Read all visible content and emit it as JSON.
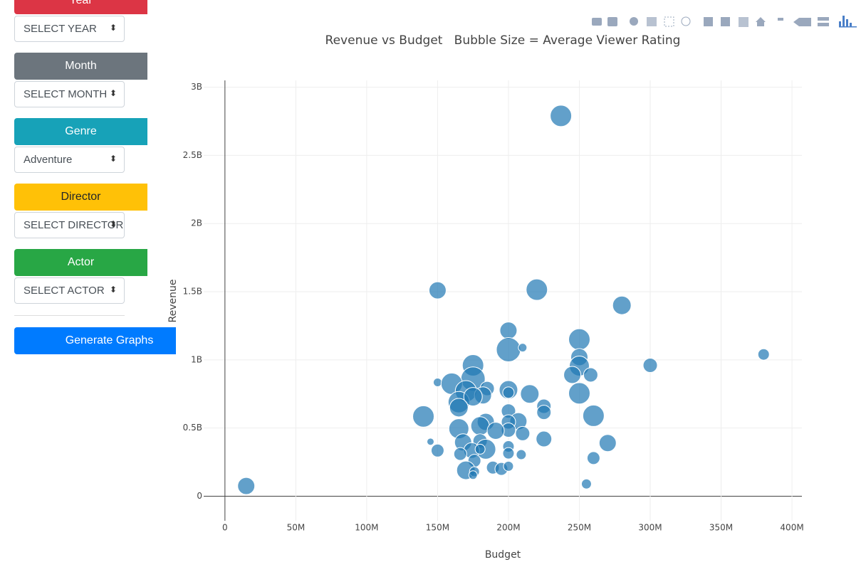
{
  "sidebar": {
    "filters": [
      {
        "label": "Year",
        "select": "SELECT YEAR",
        "color": "#dc3545"
      },
      {
        "label": "Month",
        "select": "SELECT MONTH",
        "color": "#6c757d"
      },
      {
        "label": "Genre",
        "select": "Adventure",
        "color": "#17a2b8"
      },
      {
        "label": "Director",
        "select": "SELECT DIRECTOR",
        "color": "#ffc107"
      },
      {
        "label": "Actor",
        "select": "SELECT ACTOR",
        "color": "#28a745"
      }
    ],
    "button": {
      "label": "Generate Graphs",
      "color": "#007bff"
    }
  },
  "chart_data": {
    "type": "scatter",
    "title": "Revenue vs Budget   Bubble Size = Average Viewer Rating",
    "x_label": "Budget",
    "y_label": "Revenue",
    "color": "rgba(31,119,180,0.7)",
    "grid": true,
    "xlim": [
      -15000000,
      407000000
    ],
    "ylim": [
      -180000000,
      3050000000
    ],
    "xticks": [
      0,
      {
        "value": 50000000,
        "label": "50M"
      },
      {
        "value": 100000000,
        "label": "100M"
      },
      {
        "value": 150000000,
        "label": "150M"
      },
      {
        "value": 200000000,
        "label": "200M"
      },
      {
        "value": 250000000,
        "label": "250M"
      },
      {
        "value": 300000000,
        "label": "300M"
      },
      {
        "value": 350000000,
        "label": "350M"
      },
      {
        "value": 400000000,
        "label": "400M"
      }
    ],
    "yticks": [
      0,
      {
        "value": 500000000,
        "label": "0.5B"
      },
      {
        "value": 1000000000,
        "label": "1B"
      },
      {
        "value": 1500000000,
        "label": "1.5B"
      },
      {
        "value": 2000000000,
        "label": "2B"
      },
      {
        "value": 2500000000,
        "label": "2.5B"
      },
      {
        "value": 3000000000,
        "label": "3B"
      }
    ],
    "x": [
      237000000,
      150000000,
      220000000,
      280000000,
      380000000,
      300000000,
      200000000,
      250000000,
      200000000,
      210000000,
      250000000,
      250000000,
      245000000,
      258000000,
      175000000,
      175000000,
      150000000,
      160000000,
      170000000,
      185000000,
      200000000,
      200000000,
      215000000,
      250000000,
      165000000,
      182000000,
      175000000,
      165000000,
      225000000,
      225000000,
      200000000,
      140000000,
      260000000,
      207000000,
      200000000,
      184000000,
      180000000,
      165000000,
      200000000,
      191000000,
      210000000,
      225000000,
      270000000,
      145000000,
      168000000,
      180000000,
      200000000,
      184000000,
      174000000,
      150000000,
      180000000,
      166000000,
      200000000,
      209000000,
      176000000,
      260000000,
      170000000,
      189000000,
      195000000,
      200000000,
      176000000,
      175000000,
      255000000,
      15000000
    ],
    "values": [
      2790000000,
      1510000000,
      1515000000,
      1400000000,
      1040000000,
      960000000,
      1215000000,
      1150000000,
      1075000000,
      1090000000,
      1020000000,
      955000000,
      890000000,
      890000000,
      960000000,
      860000000,
      835000000,
      825000000,
      770000000,
      790000000,
      780000000,
      760000000,
      750000000,
      755000000,
      690000000,
      740000000,
      730000000,
      650000000,
      660000000,
      615000000,
      625000000,
      585000000,
      590000000,
      550000000,
      545000000,
      545000000,
      515000000,
      495000000,
      485000000,
      480000000,
      460000000,
      420000000,
      390000000,
      400000000,
      395000000,
      405000000,
      365000000,
      345000000,
      335000000,
      335000000,
      345000000,
      310000000,
      315000000,
      305000000,
      260000000,
      280000000,
      190000000,
      210000000,
      200000000,
      220000000,
      180000000,
      155000000,
      90000000,
      75000000
    ],
    "sizes": [
      7.5,
      6.9,
      7.5,
      7.1,
      6.1,
      6.5,
      6.9,
      7.5,
      7.9,
      5.7,
      6.9,
      7.3,
      6.9,
      6.5,
      7.5,
      7.9,
      5.7,
      7.5,
      7.5,
      6.5,
      7.1,
      6.1,
      7.1,
      7.5,
      7.5,
      6.9,
      7.1,
      7.1,
      6.5,
      6.5,
      6.5,
      7.5,
      7.5,
      6.9,
      6.5,
      6.9,
      7.1,
      7.3,
      6.5,
      6.9,
      6.5,
      6.7,
      6.9,
      5.5,
      6.9,
      6.5,
      6.1,
      7.3,
      6.7,
      6.3,
      5.9,
      6.3,
      6.1,
      5.9,
      6.3,
      6.3,
      7.1,
      6.3,
      6.3,
      5.9,
      5.9,
      5.7,
      5.9,
      6.9
    ]
  }
}
